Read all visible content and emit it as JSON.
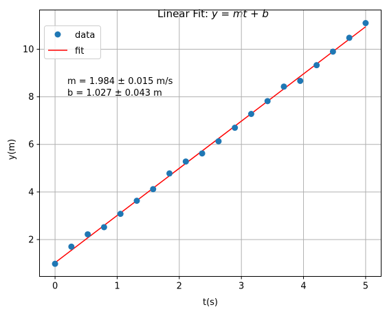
{
  "chart_data": {
    "type": "scatter",
    "title_prefix": "Linear Fit: ",
    "title_math": "y = mt + b",
    "xlabel": "t(s)",
    "ylabel": "y(m)",
    "xlim": [
      -0.25,
      5.25
    ],
    "ylim": [
      0.45,
      11.65
    ],
    "xticks": [
      0,
      1,
      2,
      3,
      4,
      5
    ],
    "yticks": [
      2,
      4,
      6,
      8,
      10
    ],
    "grid": true,
    "legend": {
      "position": "top-left",
      "entries": [
        {
          "label": "data",
          "marker": "circle"
        },
        {
          "label": "fit",
          "marker": "line"
        }
      ]
    },
    "series": [
      {
        "name": "data",
        "kind": "scatter",
        "color": "#1f77b4",
        "x": [
          0.0,
          0.263,
          0.526,
          0.789,
          1.053,
          1.316,
          1.579,
          1.842,
          2.105,
          2.368,
          2.632,
          2.895,
          3.158,
          3.421,
          3.684,
          3.947,
          4.211,
          4.474,
          4.737,
          5.0
        ],
        "y": [
          0.98,
          1.7,
          2.22,
          2.52,
          3.08,
          3.63,
          4.12,
          4.78,
          5.28,
          5.62,
          6.13,
          6.7,
          7.28,
          7.82,
          8.43,
          8.67,
          9.33,
          9.9,
          10.48,
          11.1
        ]
      },
      {
        "name": "fit",
        "kind": "line",
        "color": "#ff0000",
        "x": [
          0,
          5
        ],
        "y": [
          1.027,
          10.947
        ]
      }
    ],
    "annotation": {
      "line1": "m = 1.984 ± 0.015 m/s",
      "line2": "b = 1.027 ± 0.043 m"
    }
  }
}
